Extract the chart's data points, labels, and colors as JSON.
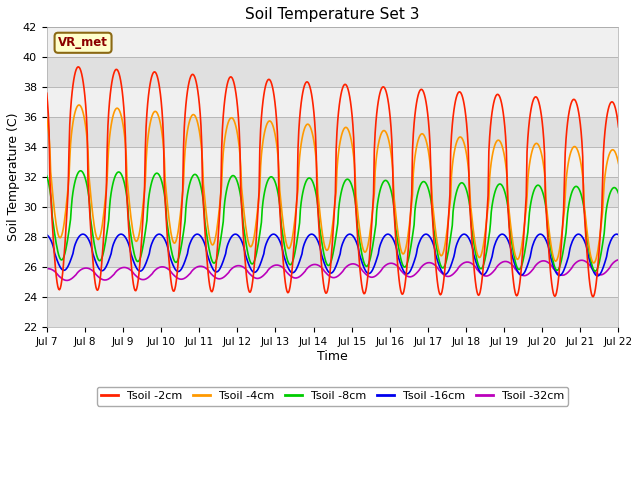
{
  "title": "Soil Temperature Set 3",
  "xlabel": "Time",
  "ylabel": "Soil Temperature (C)",
  "ylim": [
    22,
    42
  ],
  "xlim": [
    0,
    15
  ],
  "outer_bg": "#ffffff",
  "plot_bg_light": "#f0f0f0",
  "plot_bg_dark": "#e0e0e0",
  "grid_color": "#cccccc",
  "series": {
    "Tsoil -2cm": {
      "color": "#ff2200",
      "lw": 1.2
    },
    "Tsoil -4cm": {
      "color": "#ff9900",
      "lw": 1.2
    },
    "Tsoil -8cm": {
      "color": "#00cc00",
      "lw": 1.2
    },
    "Tsoil -16cm": {
      "color": "#0000ee",
      "lw": 1.2
    },
    "Tsoil -32cm": {
      "color": "#bb00bb",
      "lw": 1.2
    }
  },
  "xtick_labels": [
    "Jul 7",
    "Jul 8",
    "Jul 9",
    "Jul 10",
    "Jul 11",
    "Jul 12",
    "Jul 13",
    "Jul 14",
    "Jul 15",
    "Jul 16",
    "Jul 17",
    "Jul 18",
    "Jul 19",
    "Jul 20",
    "Jul 21",
    "Jul 22"
  ],
  "annotation_text": "VR_met",
  "yticks": [
    22,
    24,
    26,
    28,
    30,
    32,
    34,
    36,
    38,
    40,
    42
  ]
}
